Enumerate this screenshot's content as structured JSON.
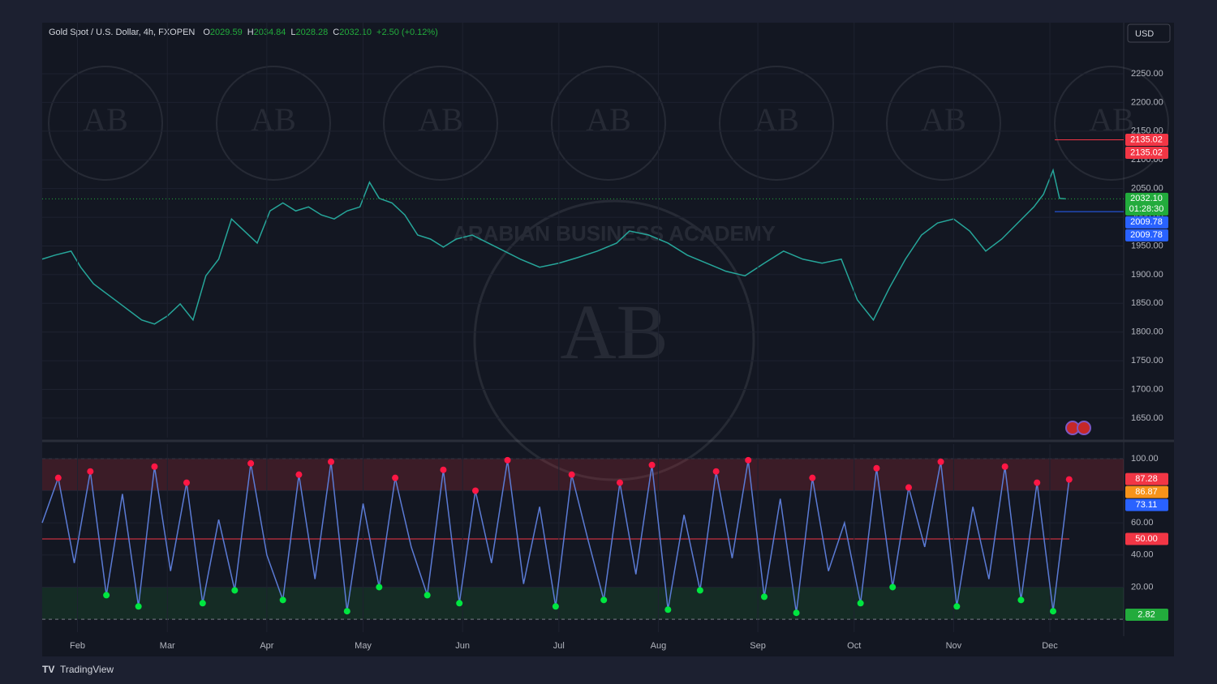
{
  "header": {
    "symbol": "Gold Spot / U.S. Dollar, 4h, FXOPEN",
    "ohlc": [
      {
        "key": "O",
        "value": "2029.59"
      },
      {
        "key": "H",
        "value": "2034.84"
      },
      {
        "key": "L",
        "value": "2028.28"
      },
      {
        "key": "C",
        "value": "2032.10"
      }
    ],
    "change": "+2.50 (+0.12%)",
    "currency": "USD"
  },
  "watermark": {
    "initials": "AB",
    "name": "ARABIAN BUSINESS ACADEMY"
  },
  "footer": {
    "brand": "TradingView"
  },
  "chart_data": [
    {
      "type": "line",
      "xlim": [
        21,
        358
      ],
      "ylim": [
        1616,
        2339
      ],
      "yticks": [
        {
          "value": 1650,
          "label": "1650.00"
        },
        {
          "value": 1700,
          "label": "1700.00"
        },
        {
          "value": 1750,
          "label": "1750.00"
        },
        {
          "value": 1800,
          "label": "1800.00"
        },
        {
          "value": 1850,
          "label": "1850.00"
        },
        {
          "value": 1900,
          "label": "1900.00"
        },
        {
          "value": 1950,
          "label": "1950.00"
        },
        {
          "value": 2000,
          "label": "2000.00"
        },
        {
          "value": 2050,
          "label": "2050.00"
        },
        {
          "value": 2100,
          "label": "2100.00"
        },
        {
          "value": 2150,
          "label": "2150.00"
        },
        {
          "value": 2200,
          "label": "2200.00"
        },
        {
          "value": 2250,
          "label": "2250.00"
        }
      ],
      "series": [
        {
          "color": "#26a69a",
          "x": [
            21,
            25,
            30,
            33,
            37,
            42,
            47,
            52,
            56,
            60,
            64,
            68,
            72,
            76,
            80,
            84,
            88,
            92,
            96,
            100,
            104,
            108,
            112,
            116,
            120,
            123,
            126,
            130,
            134,
            138,
            142,
            146,
            150,
            155,
            160,
            165,
            170,
            176,
            182,
            188,
            194,
            200,
            204,
            210,
            216,
            222,
            228,
            234,
            240,
            246,
            252,
            258,
            264,
            270,
            275,
            280,
            285,
            290,
            295,
            300,
            305,
            310,
            315,
            320,
            325,
            330,
            333,
            336,
            338,
            340
          ],
          "values": [
            1927,
            1934,
            1941,
            1913,
            1884,
            1863,
            1842,
            1821,
            1814,
            1828,
            1849,
            1821,
            1898,
            1927,
            1997,
            1976,
            1955,
            2011,
            2025,
            2011,
            2018,
            2004,
            1997,
            2011,
            2018,
            2061,
            2033,
            2025,
            2004,
            1969,
            1962,
            1948,
            1962,
            1969,
            1955,
            1941,
            1927,
            1913,
            1920,
            1930,
            1941,
            1955,
            1976,
            1969,
            1955,
            1934,
            1920,
            1906,
            1898,
            1920,
            1941,
            1927,
            1920,
            1927,
            1856,
            1821,
            1877,
            1927,
            1969,
            1990,
            1997,
            1976,
            1941,
            1962,
            1990,
            2018,
            2040,
            2082,
            2033,
            2032.1
          ]
        }
      ],
      "price_tags": [
        {
          "value": 2135.02,
          "label": "2135.02",
          "color": "#f23645"
        },
        {
          "value": 2135.02,
          "label": "2135.02",
          "color": "#f23645"
        },
        {
          "value": 2032.1,
          "label": "2032.10",
          "color": "#22ab3c",
          "countdown": "01:28:30"
        },
        {
          "value": 2009.78,
          "label": "2009.78",
          "color": "#2962ff"
        },
        {
          "value": 2009.78,
          "label": "2009.78",
          "color": "#2962ff"
        }
      ]
    },
    {
      "type": "line",
      "xlim": [
        21,
        358
      ],
      "ylim": [
        -8,
        109
      ],
      "xticks": [
        {
          "value": 32,
          "label": "Feb"
        },
        {
          "value": 60,
          "label": "Mar"
        },
        {
          "value": 91,
          "label": "Apr"
        },
        {
          "value": 121,
          "label": "May"
        },
        {
          "value": 152,
          "label": "Jun"
        },
        {
          "value": 182,
          "label": "Jul"
        },
        {
          "value": 213,
          "label": "Aug"
        },
        {
          "value": 244,
          "label": "Sep"
        },
        {
          "value": 274,
          "label": "Oct"
        },
        {
          "value": 305,
          "label": "Nov"
        },
        {
          "value": 335,
          "label": "Dec"
        }
      ],
      "yticks": [
        {
          "value": 20,
          "label": "20.00"
        },
        {
          "value": 40,
          "label": "40.00"
        },
        {
          "value": 60,
          "label": "60.00"
        },
        {
          "value": 80,
          "label": "80.00"
        },
        {
          "value": 100,
          "label": "100.00"
        }
      ],
      "upper_band": [
        80,
        100
      ],
      "lower_band": [
        0,
        20
      ],
      "midline": 50,
      "series": [
        {
          "color": "#5b7bd5",
          "x": [
            21,
            26,
            31,
            36,
            41,
            46,
            51,
            56,
            61,
            66,
            71,
            76,
            81,
            86,
            91,
            96,
            101,
            106,
            111,
            116,
            121,
            126,
            131,
            136,
            141,
            146,
            151,
            156,
            161,
            166,
            171,
            176,
            181,
            186,
            191,
            196,
            201,
            206,
            211,
            216,
            221,
            226,
            231,
            236,
            241,
            246,
            251,
            256,
            261,
            266,
            271,
            276,
            281,
            286,
            291,
            296,
            301,
            306,
            311,
            316,
            321,
            326,
            331,
            336,
            341
          ],
          "values": [
            60,
            88,
            35,
            92,
            15,
            78,
            8,
            95,
            30,
            85,
            10,
            62,
            18,
            97,
            40,
            12,
            90,
            25,
            98,
            5,
            72,
            20,
            88,
            45,
            15,
            93,
            10,
            80,
            35,
            99,
            22,
            70,
            8,
            90,
            50,
            12,
            85,
            28,
            96,
            6,
            65,
            18,
            92,
            38,
            99,
            14,
            75,
            4,
            88,
            30,
            60,
            10,
            94,
            20,
            82,
            45,
            98,
            8,
            70,
            25,
            95,
            12,
            85,
            5,
            87
          ]
        }
      ],
      "price_tags": [
        {
          "value": 87.28,
          "label": "87.28",
          "color": "#f23645"
        },
        {
          "value": 86.87,
          "label": "86.87",
          "color": "#f7931a"
        },
        {
          "value": 73.11,
          "label": "73.11",
          "color": "#2962ff"
        },
        {
          "value": 50,
          "label": "50.00",
          "color": "#f23645"
        },
        {
          "value": 2.82,
          "label": "2.82",
          "color": "#22ab3c"
        }
      ]
    }
  ]
}
